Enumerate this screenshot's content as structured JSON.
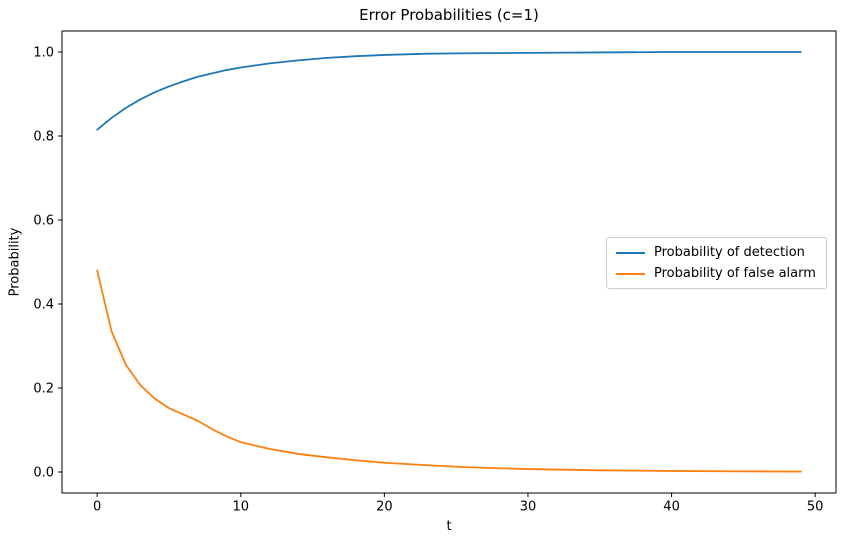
{
  "chart_data": {
    "type": "line",
    "title": "Error Probabilities (c=1)",
    "xlabel": "t",
    "ylabel": "Probability",
    "xlim": [
      -2.45,
      51.45
    ],
    "ylim": [
      -0.05,
      1.05
    ],
    "x_ticks": [
      0,
      10,
      20,
      30,
      40,
      50
    ],
    "x_tick_labels": [
      "0",
      "10",
      "20",
      "30",
      "40",
      "50"
    ],
    "y_ticks": [
      0.0,
      0.2,
      0.4,
      0.6,
      0.8,
      1.0
    ],
    "y_tick_labels": [
      "0.0",
      "0.2",
      "0.4",
      "0.6",
      "0.8",
      "1.0"
    ],
    "grid": false,
    "axis_color": "#000000",
    "legend": {
      "position": "center right",
      "border_color": "#cccccc",
      "background": "#ffffff"
    },
    "x": [
      0,
      1,
      2,
      3,
      4,
      5,
      6,
      7,
      8,
      9,
      10,
      12,
      14,
      16,
      18,
      20,
      23,
      26,
      30,
      35,
      40,
      45,
      49
    ],
    "series": [
      {
        "name": "Probability of detection",
        "color": "#1f77b4",
        "values": [
          0.815,
          0.843,
          0.867,
          0.887,
          0.904,
          0.918,
          0.93,
          0.941,
          0.949,
          0.957,
          0.963,
          0.973,
          0.98,
          0.986,
          0.99,
          0.993,
          0.996,
          0.997,
          0.998,
          0.999,
          1.0,
          1.0,
          1.0
        ]
      },
      {
        "name": "Probability of false alarm",
        "color": "#ff7f0e",
        "values": [
          0.48,
          0.335,
          0.255,
          0.207,
          0.175,
          0.152,
          0.137,
          0.122,
          0.102,
          0.085,
          0.071,
          0.055,
          0.043,
          0.035,
          0.028,
          0.022,
          0.016,
          0.011,
          0.007,
          0.004,
          0.0025,
          0.0015,
          0.001
        ]
      }
    ]
  }
}
